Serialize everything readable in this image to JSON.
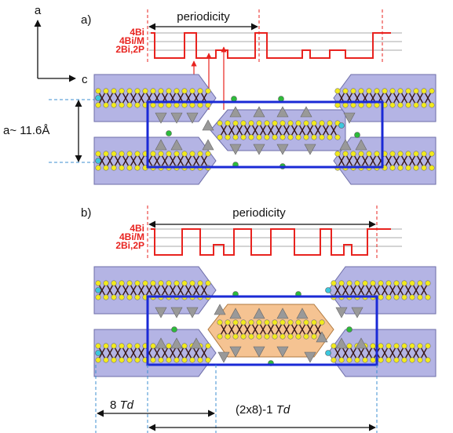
{
  "axes": {
    "vertical": "a",
    "horizontal": "c"
  },
  "lattice_label": "a~ 11.6Å",
  "panels": [
    {
      "label": "a)",
      "periodicity": "periodicity",
      "levels": [
        "4Bi",
        "4Bi/M",
        "2Bi,2P"
      ]
    },
    {
      "label": "b)",
      "periodicity": "periodicity",
      "levels": [
        "4Bi",
        "4Bi/M",
        "2Bi,2P"
      ]
    }
  ],
  "dimensions": [
    {
      "count": "8",
      "unit": "Td"
    },
    {
      "count": "(2x8)-1",
      "unit": "Td"
    }
  ]
}
